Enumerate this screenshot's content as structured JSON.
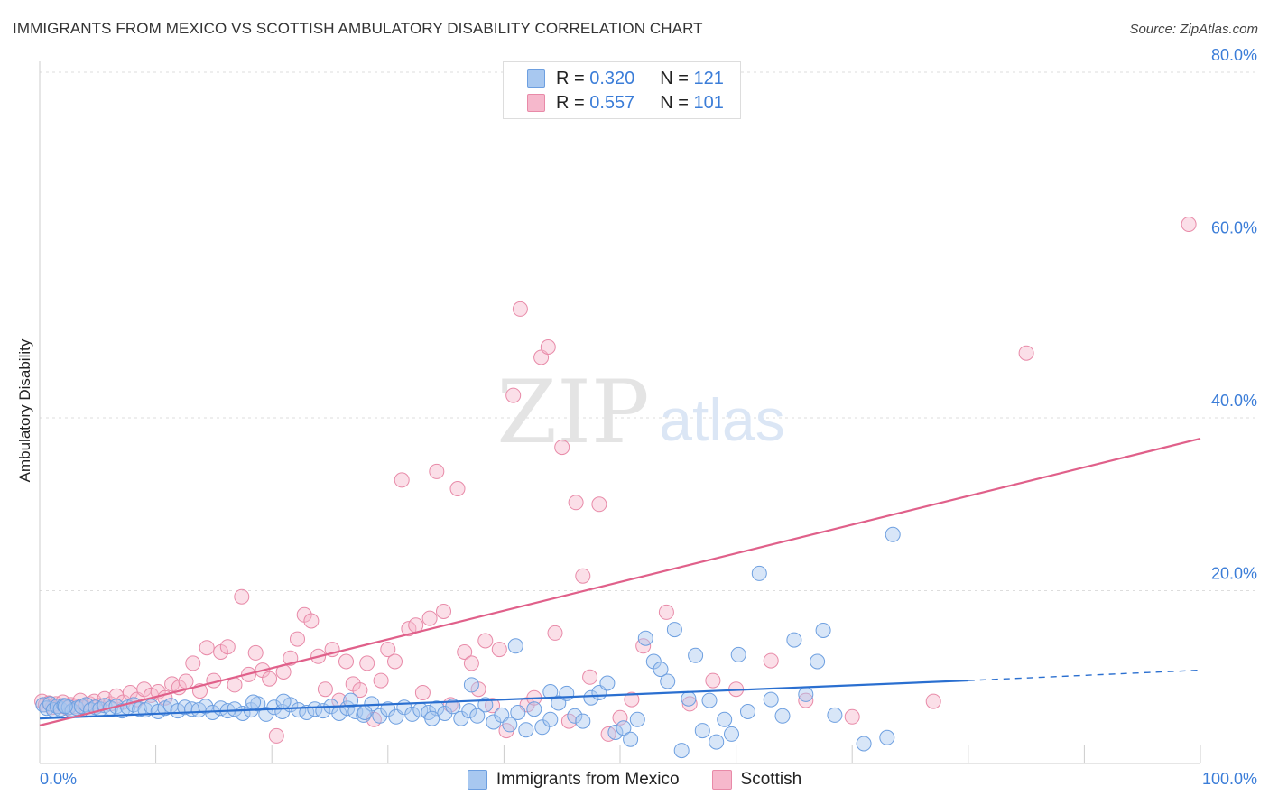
{
  "title": "IMMIGRANTS FROM MEXICO VS SCOTTISH AMBULATORY DISABILITY CORRELATION CHART",
  "source": "Source: ZipAtlas.com",
  "watermark": {
    "zip": "ZIP",
    "atlas": "atlas"
  },
  "colors": {
    "blue_fill": "#a8c8f0",
    "blue_stroke": "#6d9fe0",
    "blue_line": "#2a6fd0",
    "pink_fill": "#f6b8cc",
    "pink_stroke": "#e88aa8",
    "pink_line": "#e0608a",
    "tick_label": "#3b7dd8",
    "grid": "#dddddd"
  },
  "stats": [
    {
      "r_label": "R =",
      "r": "0.320",
      "n_label": "N =",
      "n": "121",
      "color": "#a8c8f0"
    },
    {
      "r_label": "R =",
      "r": "0.557",
      "n_label": "N =",
      "n": "101",
      "color": "#f6b8cc"
    }
  ],
  "legend": [
    {
      "label": "Immigrants from Mexico",
      "color": "#a8c8f0"
    },
    {
      "label": "Scottish",
      "color": "#f6b8cc"
    }
  ],
  "chart_data": {
    "type": "scatter",
    "title": "IMMIGRANTS FROM MEXICO VS SCOTTISH AMBULATORY DISABILITY CORRELATION CHART",
    "xlabel": "",
    "ylabel": "Ambulatory Disability",
    "xlim": [
      0,
      100
    ],
    "ylim": [
      0,
      83
    ],
    "x_tick_labels": [
      {
        "v": 0,
        "label": "0.0%"
      },
      {
        "v": 100,
        "label": "100.0%"
      }
    ],
    "y_tick_labels": [
      {
        "v": 20,
        "label": "20.0%"
      },
      {
        "v": 40,
        "label": "40.0%"
      },
      {
        "v": 60,
        "label": "60.0%"
      },
      {
        "v": 80,
        "label": "80.0%"
      }
    ],
    "gridlines_y": [
      20,
      40,
      60,
      80
    ],
    "grid": true,
    "legend_position": "bottom",
    "series": [
      {
        "name": "Immigrants from Mexico",
        "trend": {
          "x0": 0,
          "y0": 5.2,
          "x1": 80,
          "y1": 9.6,
          "dash_x1": 100,
          "dash_y1": 10.8
        },
        "points": [
          [
            0.3,
            6.8
          ],
          [
            0.6,
            6.4
          ],
          [
            0.9,
            6.9
          ],
          [
            1.2,
            6.2
          ],
          [
            1.5,
            6.6
          ],
          [
            1.8,
            6.3
          ],
          [
            2.1,
            6.7
          ],
          [
            2.5,
            6.5
          ],
          [
            2.8,
            6.1
          ],
          [
            3.2,
            6.4
          ],
          [
            3.6,
            6.6
          ],
          [
            4.0,
            6.8
          ],
          [
            4.4,
            6.2
          ],
          [
            4.8,
            6.5
          ],
          [
            5.2,
            6.3
          ],
          [
            5.6,
            6.7
          ],
          [
            6.1,
            6.4
          ],
          [
            6.6,
            6.6
          ],
          [
            7.1,
            6.1
          ],
          [
            7.6,
            6.5
          ],
          [
            8.1,
            6.8
          ],
          [
            8.6,
            6.3
          ],
          [
            9.1,
            6.2
          ],
          [
            9.6,
            6.6
          ],
          [
            10.2,
            6.0
          ],
          [
            10.8,
            6.4
          ],
          [
            11.3,
            6.7
          ],
          [
            11.9,
            6.1
          ],
          [
            12.5,
            6.5
          ],
          [
            13.1,
            6.3
          ],
          [
            13.7,
            6.2
          ],
          [
            14.3,
            6.6
          ],
          [
            14.9,
            5.9
          ],
          [
            15.6,
            6.4
          ],
          [
            16.2,
            6.1
          ],
          [
            16.8,
            6.3
          ],
          [
            17.5,
            5.8
          ],
          [
            18.2,
            6.2
          ],
          [
            18.8,
            6.9
          ],
          [
            19.5,
            5.7
          ],
          [
            20.2,
            6.5
          ],
          [
            20.9,
            6.0
          ],
          [
            21.6,
            6.8
          ],
          [
            22.3,
            6.2
          ],
          [
            23.0,
            5.9
          ],
          [
            23.7,
            6.3
          ],
          [
            24.4,
            6.1
          ],
          [
            25.1,
            6.6
          ],
          [
            25.8,
            5.8
          ],
          [
            26.5,
            6.4
          ],
          [
            27.2,
            6.0
          ],
          [
            27.9,
            5.6
          ],
          [
            28.6,
            6.9
          ],
          [
            29.3,
            5.5
          ],
          [
            30.0,
            6.3
          ],
          [
            30.7,
            5.4
          ],
          [
            31.4,
            6.5
          ],
          [
            32.1,
            5.7
          ],
          [
            32.8,
            6.2
          ],
          [
            33.5,
            5.9
          ],
          [
            34.2,
            6.4
          ],
          [
            34.9,
            5.8
          ],
          [
            35.6,
            6.6
          ],
          [
            36.3,
            5.2
          ],
          [
            37.0,
            6.1
          ],
          [
            37.7,
            5.5
          ],
          [
            38.4,
            6.8
          ],
          [
            39.1,
            4.8
          ],
          [
            39.8,
            5.6
          ],
          [
            40.5,
            4.5
          ],
          [
            41.2,
            5.9
          ],
          [
            41.9,
            3.9
          ],
          [
            42.6,
            6.3
          ],
          [
            43.3,
            4.2
          ],
          [
            44.0,
            5.1
          ],
          [
            44.7,
            7.0
          ],
          [
            45.4,
            8.1
          ],
          [
            46.1,
            5.5
          ],
          [
            46.8,
            4.9
          ],
          [
            47.5,
            7.6
          ],
          [
            48.2,
            8.2
          ],
          [
            48.9,
            9.3
          ],
          [
            49.6,
            3.6
          ],
          [
            50.3,
            4.1
          ],
          [
            50.9,
            2.8
          ],
          [
            51.5,
            5.1
          ],
          [
            52.2,
            14.5
          ],
          [
            52.9,
            11.8
          ],
          [
            53.5,
            10.9
          ],
          [
            54.1,
            9.5
          ],
          [
            54.7,
            15.5
          ],
          [
            55.3,
            1.5
          ],
          [
            55.9,
            7.5
          ],
          [
            56.5,
            12.5
          ],
          [
            57.1,
            3.8
          ],
          [
            57.7,
            7.3
          ],
          [
            58.3,
            2.5
          ],
          [
            59.0,
            5.1
          ],
          [
            59.6,
            3.4
          ],
          [
            60.2,
            12.6
          ],
          [
            61.0,
            6.0
          ],
          [
            62.0,
            22.0
          ],
          [
            63.0,
            7.4
          ],
          [
            64.0,
            5.5
          ],
          [
            65.0,
            14.3
          ],
          [
            66.0,
            8.0
          ],
          [
            67.0,
            11.8
          ],
          [
            67.5,
            15.4
          ],
          [
            68.5,
            5.6
          ],
          [
            71.0,
            2.3
          ],
          [
            73.0,
            3.0
          ],
          [
            73.5,
            26.5
          ],
          [
            37.2,
            9.1
          ],
          [
            28.0,
            5.9
          ],
          [
            18.4,
            7.1
          ],
          [
            21.0,
            7.2
          ],
          [
            41.0,
            13.6
          ],
          [
            44.0,
            8.3
          ],
          [
            33.8,
            5.2
          ],
          [
            26.8,
            7.3
          ],
          [
            2.2,
            6.6
          ]
        ]
      },
      {
        "name": "Scottish",
        "trend": {
          "x0": 0,
          "y0": 4.4,
          "x1": 100,
          "y1": 37.6
        },
        "points": [
          [
            0.2,
            7.2
          ],
          [
            0.5,
            6.8
          ],
          [
            0.8,
            7.0
          ],
          [
            1.1,
            6.5
          ],
          [
            1.4,
            6.9
          ],
          [
            1.7,
            6.6
          ],
          [
            2.0,
            7.1
          ],
          [
            2.4,
            6.4
          ],
          [
            2.7,
            6.8
          ],
          [
            3.1,
            6.6
          ],
          [
            3.5,
            7.3
          ],
          [
            3.9,
            6.5
          ],
          [
            4.3,
            6.9
          ],
          [
            4.7,
            7.2
          ],
          [
            5.1,
            6.7
          ],
          [
            5.6,
            7.5
          ],
          [
            6.1,
            6.9
          ],
          [
            6.6,
            7.8
          ],
          [
            7.2,
            7.1
          ],
          [
            7.8,
            8.2
          ],
          [
            8.4,
            7.4
          ],
          [
            9.0,
            8.6
          ],
          [
            9.6,
            7.9
          ],
          [
            10.2,
            8.3
          ],
          [
            10.8,
            7.6
          ],
          [
            11.4,
            9.2
          ],
          [
            12.0,
            8.8
          ],
          [
            12.6,
            9.5
          ],
          [
            13.2,
            11.6
          ],
          [
            13.8,
            8.4
          ],
          [
            14.4,
            13.4
          ],
          [
            15.0,
            9.6
          ],
          [
            15.6,
            12.9
          ],
          [
            16.2,
            13.5
          ],
          [
            16.8,
            9.1
          ],
          [
            17.4,
            19.3
          ],
          [
            18.0,
            10.3
          ],
          [
            18.6,
            12.8
          ],
          [
            19.2,
            10.8
          ],
          [
            19.8,
            9.8
          ],
          [
            20.4,
            3.2
          ],
          [
            21.0,
            10.6
          ],
          [
            21.6,
            12.2
          ],
          [
            22.2,
            14.4
          ],
          [
            22.8,
            17.2
          ],
          [
            23.4,
            16.5
          ],
          [
            24.0,
            12.4
          ],
          [
            24.6,
            8.6
          ],
          [
            25.2,
            13.2
          ],
          [
            25.8,
            7.3
          ],
          [
            26.4,
            11.8
          ],
          [
            27.0,
            9.2
          ],
          [
            27.6,
            8.5
          ],
          [
            28.2,
            11.6
          ],
          [
            28.8,
            5.1
          ],
          [
            29.4,
            9.6
          ],
          [
            30.0,
            13.2
          ],
          [
            30.6,
            11.8
          ],
          [
            31.2,
            32.8
          ],
          [
            31.8,
            15.6
          ],
          [
            32.4,
            16.0
          ],
          [
            33.0,
            8.2
          ],
          [
            33.6,
            16.8
          ],
          [
            34.2,
            33.8
          ],
          [
            34.8,
            17.6
          ],
          [
            35.4,
            6.8
          ],
          [
            36.0,
            31.8
          ],
          [
            36.6,
            12.9
          ],
          [
            37.2,
            11.6
          ],
          [
            37.8,
            8.6
          ],
          [
            38.4,
            14.2
          ],
          [
            39.0,
            6.7
          ],
          [
            39.6,
            13.2
          ],
          [
            40.2,
            3.8
          ],
          [
            40.8,
            42.6
          ],
          [
            41.4,
            52.6
          ],
          [
            42.0,
            6.8
          ],
          [
            42.6,
            7.6
          ],
          [
            43.2,
            47.0
          ],
          [
            43.8,
            48.2
          ],
          [
            44.4,
            15.1
          ],
          [
            45.0,
            36.6
          ],
          [
            45.6,
            4.9
          ],
          [
            46.2,
            30.2
          ],
          [
            46.8,
            21.7
          ],
          [
            47.4,
            10.0
          ],
          [
            48.2,
            30.0
          ],
          [
            49.0,
            3.4
          ],
          [
            50.0,
            5.3
          ],
          [
            51.0,
            7.4
          ],
          [
            52.0,
            13.6
          ],
          [
            54.0,
            17.5
          ],
          [
            56.0,
            6.9
          ],
          [
            58.0,
            9.6
          ],
          [
            60.0,
            8.6
          ],
          [
            63.0,
            11.9
          ],
          [
            66.0,
            7.3
          ],
          [
            70.0,
            5.4
          ],
          [
            77.0,
            7.2
          ],
          [
            85.0,
            47.5
          ],
          [
            99.0,
            62.4
          ]
        ]
      }
    ]
  }
}
